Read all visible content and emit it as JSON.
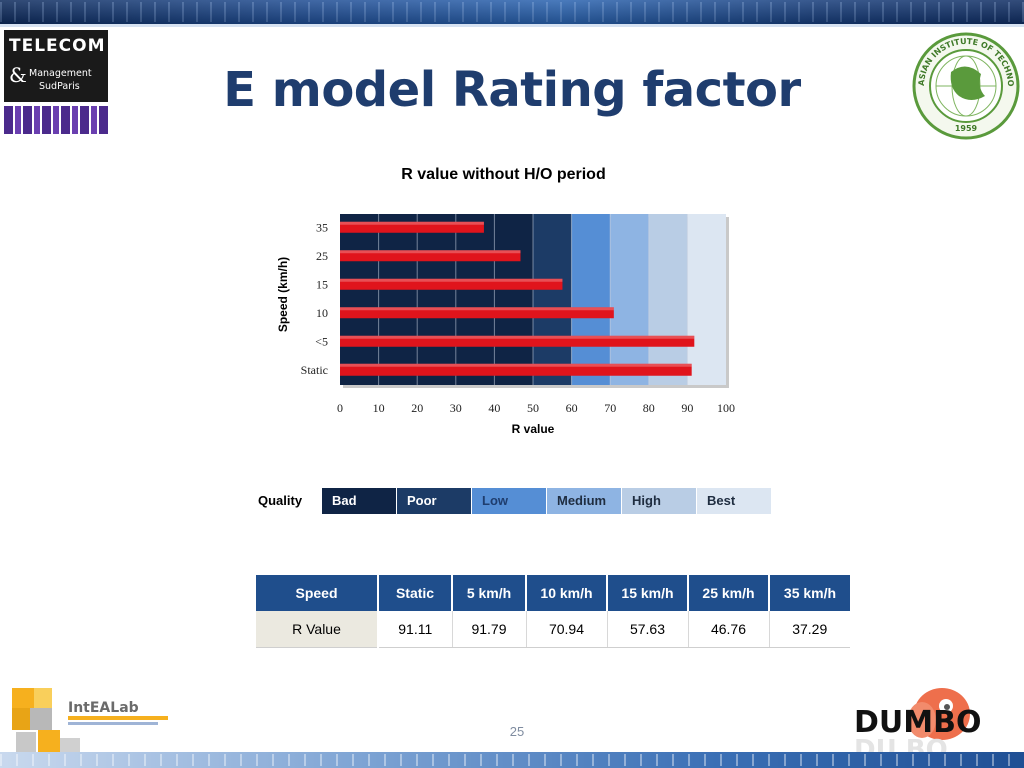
{
  "slide": {
    "title": "E model Rating factor",
    "page_number": "25"
  },
  "logos": {
    "telecom_line1": "TELECOM",
    "telecom_amp": "&",
    "telecom_line2": "Management",
    "telecom_line3": "SudParis",
    "ait_ring_text": "ASIAN INSTITUTE OF TECHNOLOGY",
    "ait_year": "1959",
    "intelab_name": "IntEALab",
    "dumbo_name": "DUMBO"
  },
  "chart_data": {
    "type": "bar",
    "orientation": "horizontal",
    "title": "R value without H/O period",
    "xlabel": "R value",
    "ylabel": "Speed (km/h)",
    "xlim": [
      0,
      100
    ],
    "xticks": [
      0,
      10,
      20,
      30,
      40,
      50,
      60,
      70,
      80,
      90,
      100
    ],
    "categories": [
      "35",
      "25",
      "15",
      "10",
      "<5",
      "Static"
    ],
    "values": [
      37.29,
      46.76,
      57.63,
      70.94,
      91.79,
      91.11
    ],
    "bar_color": "#e0141c",
    "background_bands": [
      {
        "label": "Bad",
        "from": 0,
        "to": 50,
        "color": "#0f2445"
      },
      {
        "label": "Poor",
        "from": 50,
        "to": 60,
        "color": "#1c3b66"
      },
      {
        "label": "Low",
        "from": 60,
        "to": 70,
        "color": "#558ed5"
      },
      {
        "label": "Medium",
        "from": 70,
        "to": 80,
        "color": "#8eb4e3"
      },
      {
        "label": "High",
        "from": 80,
        "to": 90,
        "color": "#b9cde5"
      },
      {
        "label": "Best",
        "from": 90,
        "to": 100,
        "color": "#dce6f2"
      }
    ]
  },
  "quality": {
    "label": "Quality",
    "levels": [
      {
        "name": "Bad",
        "bg": "#0f2445",
        "fg": "#ffffff"
      },
      {
        "name": "Poor",
        "bg": "#1c3b66",
        "fg": "#ffffff"
      },
      {
        "name": "Low",
        "bg": "#558ed5",
        "fg": "#1f3d6e"
      },
      {
        "name": "Medium",
        "bg": "#8eb4e3",
        "fg": "#1f2d40"
      },
      {
        "name": "High",
        "bg": "#b9cde5",
        "fg": "#1f2d40"
      },
      {
        "name": "Best",
        "bg": "#dce6f2",
        "fg": "#1f2d40"
      }
    ]
  },
  "table": {
    "headers": [
      "Speed",
      "Static",
      "5 km/h",
      "10 km/h",
      "15 km/h",
      "25 km/h",
      "35 km/h"
    ],
    "row_label": "R Value",
    "values": [
      "91.11",
      "91.79",
      "70.94",
      "57.63",
      "46.76",
      "37.29"
    ]
  }
}
